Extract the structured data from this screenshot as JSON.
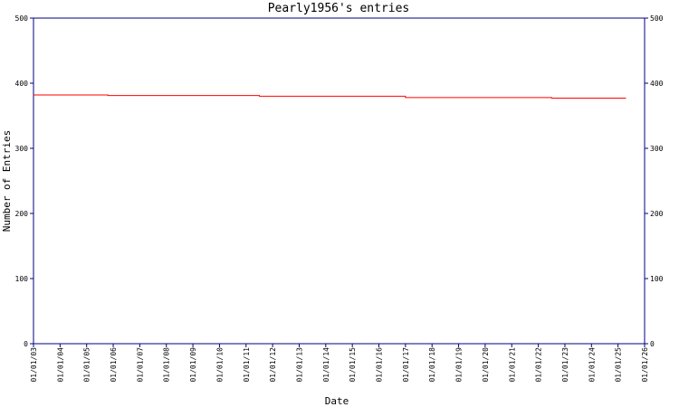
{
  "chart_data": {
    "type": "line",
    "title": "Pearly1956's entries",
    "x_label": "Date",
    "y_label": "Number of Entries",
    "x": [
      3,
      5.8,
      5.8,
      11.5,
      11.5,
      17.0,
      17.0,
      22.5,
      22.5,
      25.3
    ],
    "series": [
      {
        "color": "#ff0000",
        "values": [
          382,
          382,
          381,
          381,
          380,
          380,
          378,
          378,
          377,
          377
        ]
      }
    ],
    "xlim": [
      3,
      26
    ],
    "xticks": [
      {
        "value": 3,
        "label": "01/01/03"
      },
      {
        "value": 4,
        "label": "01/01/04"
      },
      {
        "value": 5,
        "label": "01/01/05"
      },
      {
        "value": 6,
        "label": "01/01/06"
      },
      {
        "value": 7,
        "label": "01/01/07"
      },
      {
        "value": 8,
        "label": "01/01/08"
      },
      {
        "value": 9,
        "label": "01/01/09"
      },
      {
        "value": 10,
        "label": "01/01/10"
      },
      {
        "value": 11,
        "label": "01/01/11"
      },
      {
        "value": 12,
        "label": "01/01/12"
      },
      {
        "value": 13,
        "label": "01/01/13"
      },
      {
        "value": 14,
        "label": "01/01/14"
      },
      {
        "value": 15,
        "label": "01/01/15"
      },
      {
        "value": 16,
        "label": "01/01/16"
      },
      {
        "value": 17,
        "label": "01/01/17"
      },
      {
        "value": 18,
        "label": "01/01/18"
      },
      {
        "value": 19,
        "label": "01/01/19"
      },
      {
        "value": 20,
        "label": "01/01/20"
      },
      {
        "value": 21,
        "label": "01/01/21"
      },
      {
        "value": 22,
        "label": "01/01/22"
      },
      {
        "value": 23,
        "label": "01/01/23"
      },
      {
        "value": 24,
        "label": "01/01/24"
      },
      {
        "value": 25,
        "label": "01/01/25"
      },
      {
        "value": 26,
        "label": "01/01/26"
      }
    ],
    "ylim": [
      0,
      500
    ],
    "yticks": [
      0,
      100,
      200,
      300,
      400,
      500
    ],
    "y2lim": [
      0,
      500
    ],
    "y2ticks": [
      0,
      100,
      200,
      300,
      400,
      500
    ],
    "axis_color": "#000080"
  }
}
